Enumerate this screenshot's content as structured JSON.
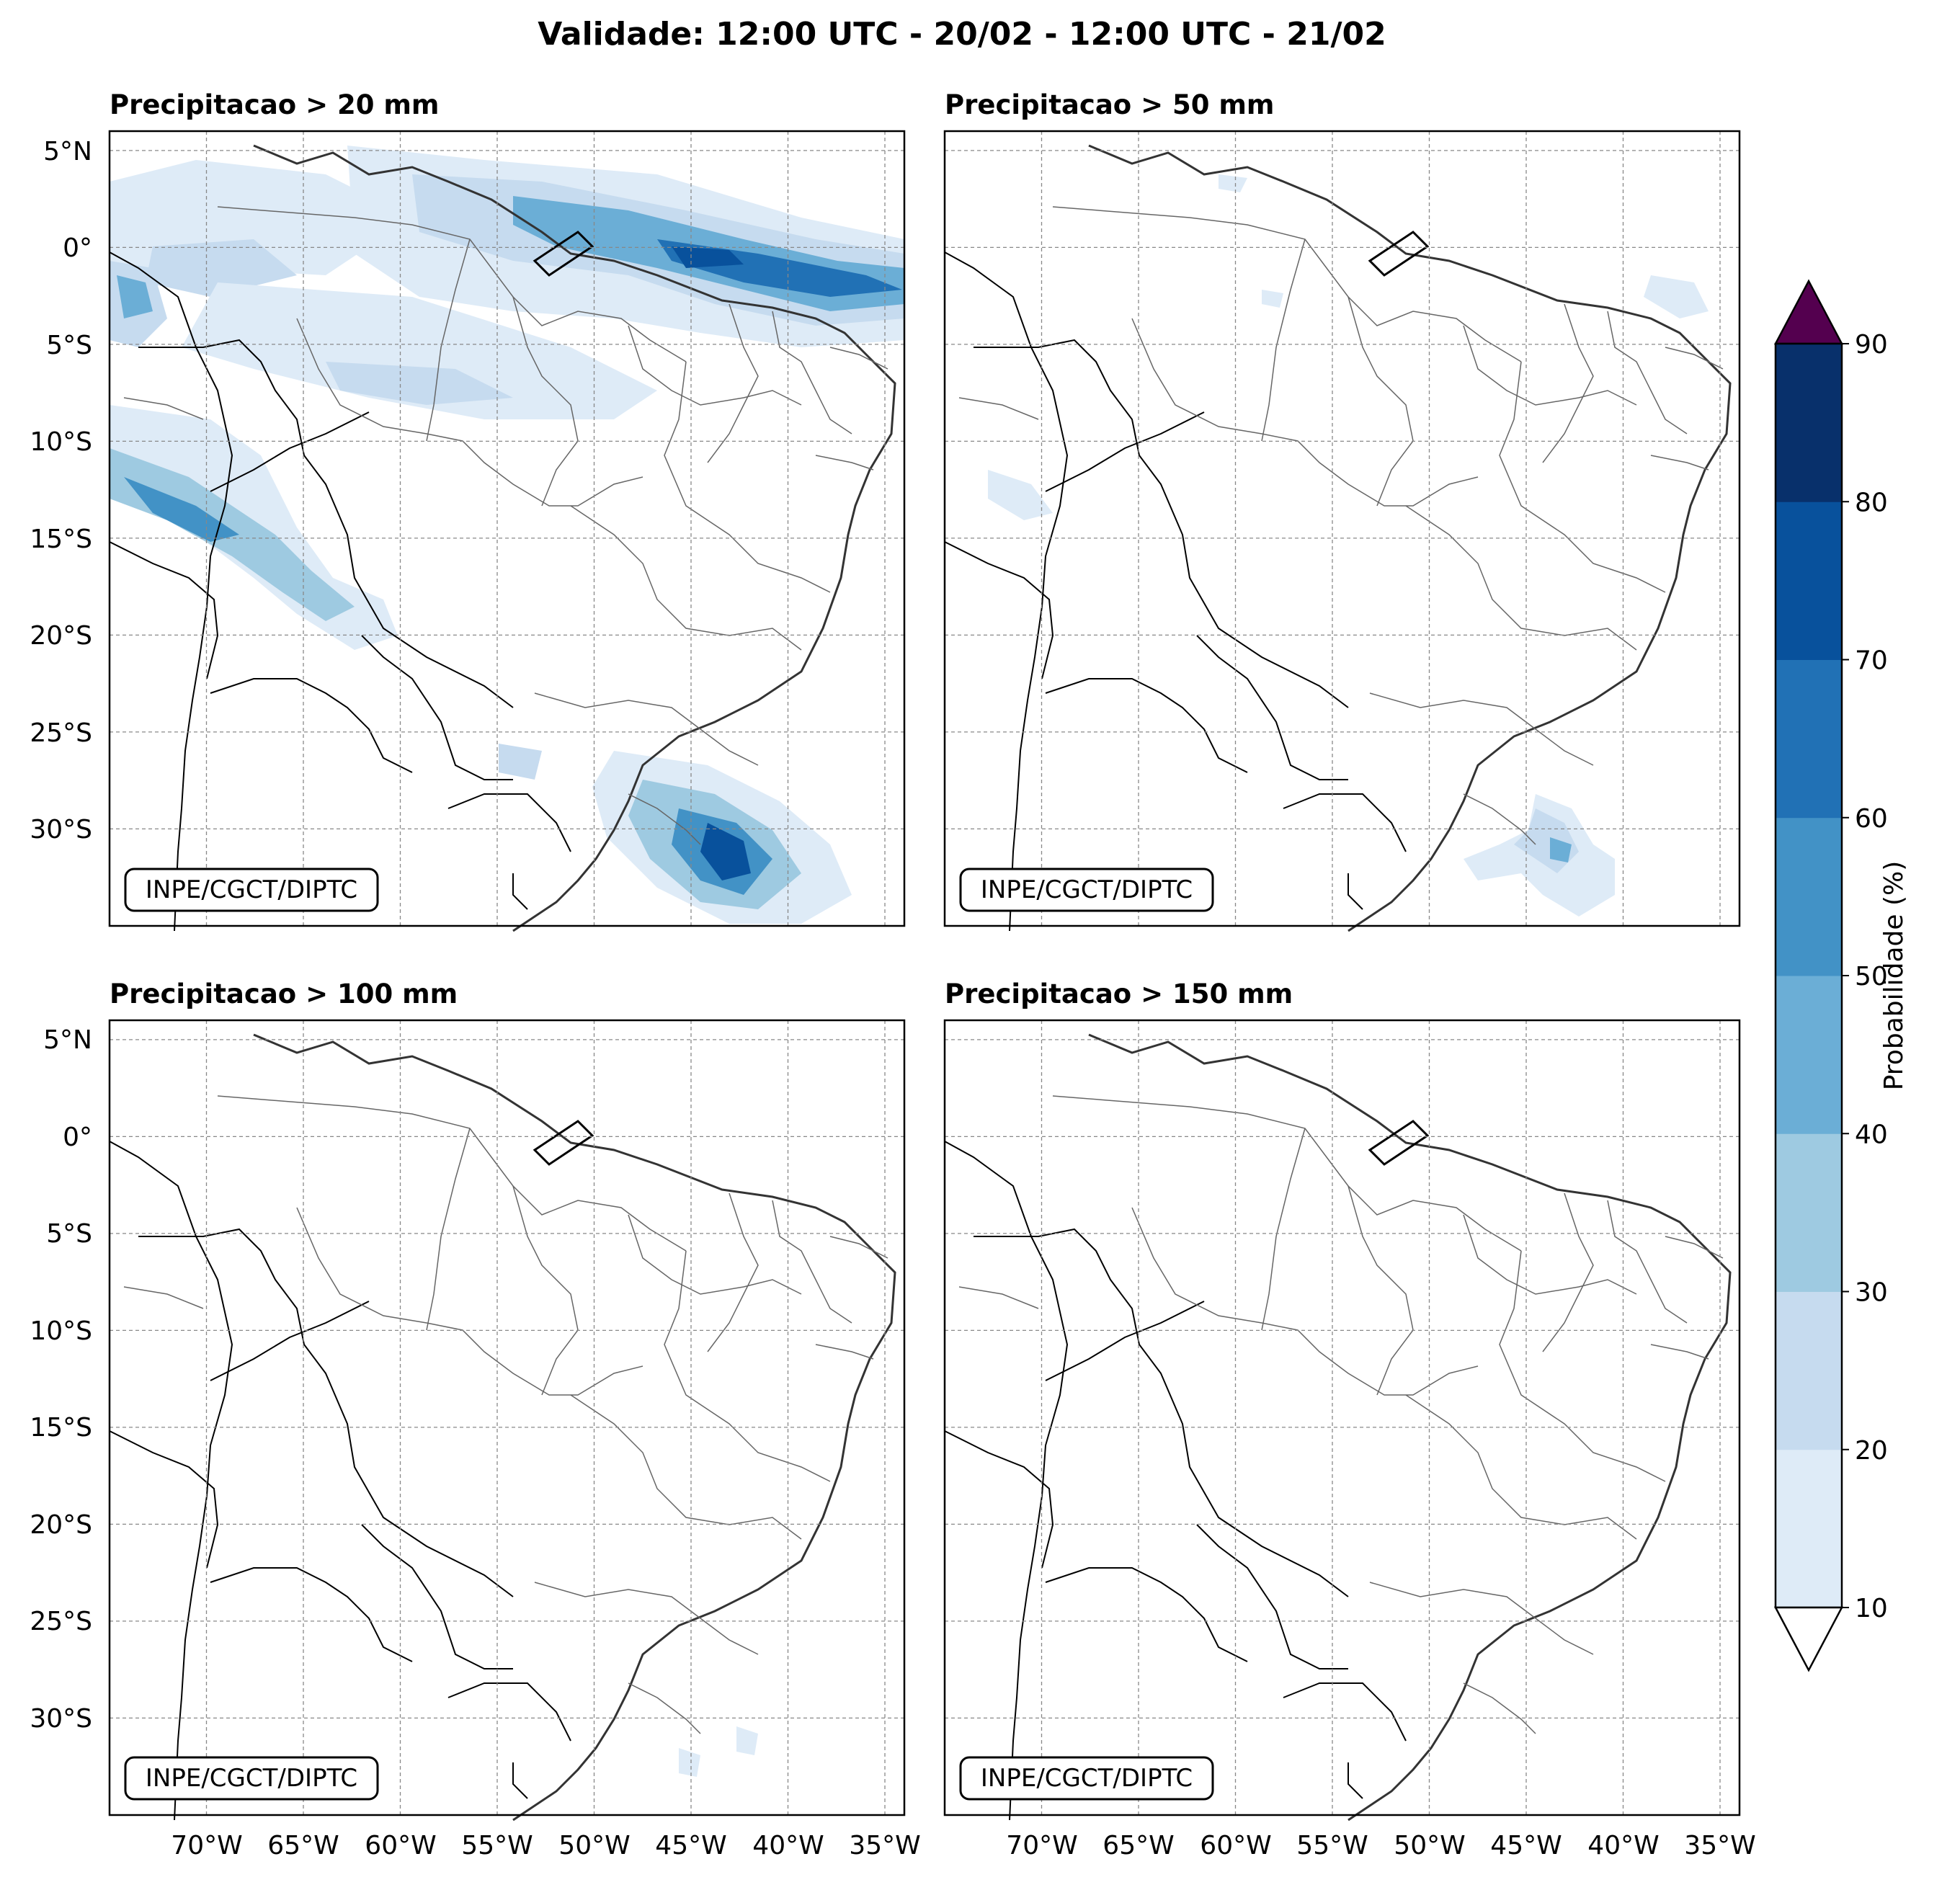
{
  "figure": {
    "title": "Validade: 12:00 UTC - 20/02 - 12:00 UTC - 21/02"
  },
  "panels": [
    {
      "title": "Precipitacao > 20 mm",
      "credit": "INPE/CGCT/DIPTC"
    },
    {
      "title": "Precipitacao > 50 mm",
      "credit": "INPE/CGCT/DIPTC"
    },
    {
      "title": "Precipitacao > 100 mm",
      "credit": "INPE/CGCT/DIPTC"
    },
    {
      "title": "Precipitacao > 150 mm",
      "credit": "INPE/CGCT/DIPTC"
    }
  ],
  "axes": {
    "lat_labels": [
      "5°N",
      "0°",
      "5°S",
      "10°S",
      "15°S",
      "20°S",
      "25°S",
      "30°S"
    ],
    "lon_labels": [
      "70°W",
      "65°W",
      "60°W",
      "55°W",
      "50°W",
      "45°W",
      "40°W",
      "35°W"
    ],
    "lat_values": [
      5,
      0,
      -5,
      -10,
      -15,
      -20,
      -25,
      -30
    ],
    "lon_values": [
      -70,
      -65,
      -60,
      -55,
      -50,
      -45,
      -40,
      -35
    ],
    "lat_range": [
      -35,
      6
    ],
    "lon_range": [
      -75,
      -34
    ]
  },
  "colorbar": {
    "label": "Probabilidade (%)",
    "ticks": [
      "10",
      "20",
      "30",
      "40",
      "50",
      "60",
      "70",
      "80",
      "90"
    ],
    "colors": [
      "#deebf7",
      "#c6dbef",
      "#9ecae1",
      "#6baed6",
      "#4292c6",
      "#2171b5",
      "#08519c",
      "#08306b"
    ],
    "over_color": "#54004f",
    "under_color": "#ffffff"
  }
}
